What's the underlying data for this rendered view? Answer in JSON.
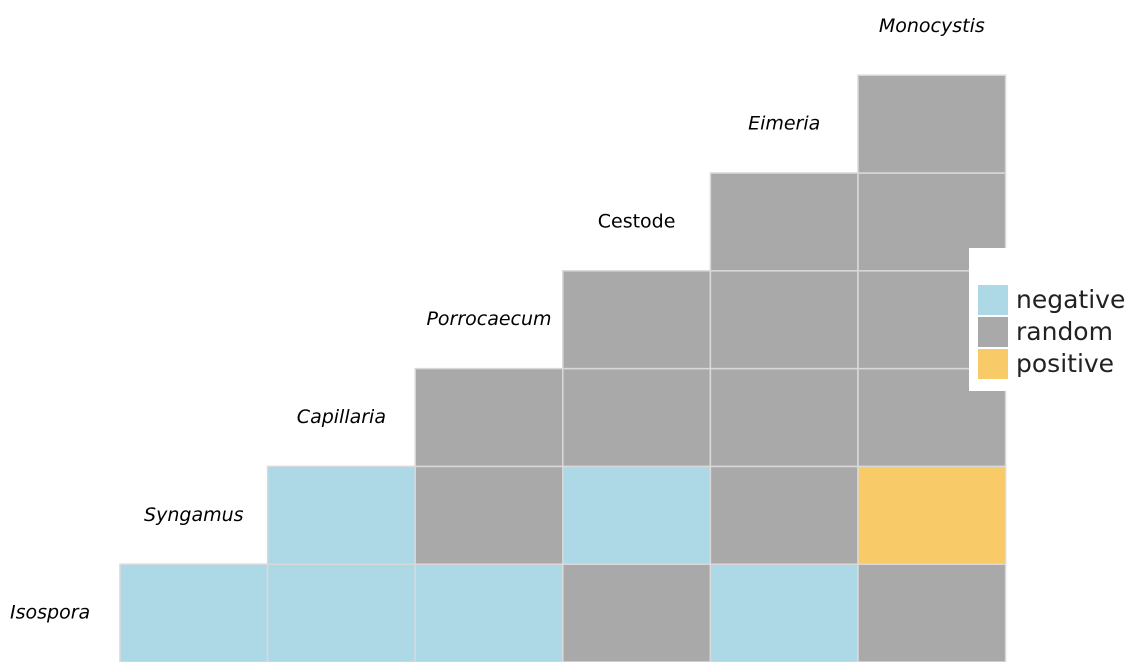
{
  "chart_data": {
    "type": "heatmap",
    "title": "",
    "xlabel": "",
    "ylabel": "",
    "row_labels": [
      "Isospora",
      "Syngamus",
      "Capillaria",
      "Porrocaecum",
      "Cestode",
      "Eimeria"
    ],
    "col_labels": [
      "Syngamus",
      "Capillaria",
      "Porrocaecum",
      "Cestode",
      "Eimeria",
      "Monocystis"
    ],
    "label_styles": {
      "Isospora": "italic",
      "Syngamus": "italic",
      "Capillaria": "italic",
      "Porrocaecum": "italic",
      "Cestode": "normal",
      "Eimeria": "italic",
      "Monocystis": "italic"
    },
    "cells": [
      {
        "row": "Isospora",
        "col": "Syngamus",
        "value": "negative"
      },
      {
        "row": "Isospora",
        "col": "Capillaria",
        "value": "negative"
      },
      {
        "row": "Isospora",
        "col": "Porrocaecum",
        "value": "negative"
      },
      {
        "row": "Isospora",
        "col": "Cestode",
        "value": "random"
      },
      {
        "row": "Isospora",
        "col": "Eimeria",
        "value": "negative"
      },
      {
        "row": "Isospora",
        "col": "Monocystis",
        "value": "random"
      },
      {
        "row": "Syngamus",
        "col": "Capillaria",
        "value": "negative"
      },
      {
        "row": "Syngamus",
        "col": "Porrocaecum",
        "value": "random"
      },
      {
        "row": "Syngamus",
        "col": "Cestode",
        "value": "negative"
      },
      {
        "row": "Syngamus",
        "col": "Eimeria",
        "value": "random"
      },
      {
        "row": "Syngamus",
        "col": "Monocystis",
        "value": "positive"
      },
      {
        "row": "Capillaria",
        "col": "Porrocaecum",
        "value": "random"
      },
      {
        "row": "Capillaria",
        "col": "Cestode",
        "value": "random"
      },
      {
        "row": "Capillaria",
        "col": "Eimeria",
        "value": "random"
      },
      {
        "row": "Capillaria",
        "col": "Monocystis",
        "value": "random"
      },
      {
        "row": "Porrocaecum",
        "col": "Cestode",
        "value": "random"
      },
      {
        "row": "Porrocaecum",
        "col": "Eimeria",
        "value": "random"
      },
      {
        "row": "Porrocaecum",
        "col": "Monocystis",
        "value": "random"
      },
      {
        "row": "Cestode",
        "col": "Eimeria",
        "value": "random"
      },
      {
        "row": "Cestode",
        "col": "Monocystis",
        "value": "random"
      },
      {
        "row": "Eimeria",
        "col": "Monocystis",
        "value": "random"
      }
    ],
    "legend": {
      "placement": "right",
      "entries": [
        {
          "label": "negative",
          "color": "#add8e6"
        },
        {
          "label": "random",
          "color": "#a9a9a9"
        },
        {
          "label": "positive",
          "color": "#f8ca68"
        }
      ]
    },
    "grid_line_color": "#d9d9d9"
  }
}
